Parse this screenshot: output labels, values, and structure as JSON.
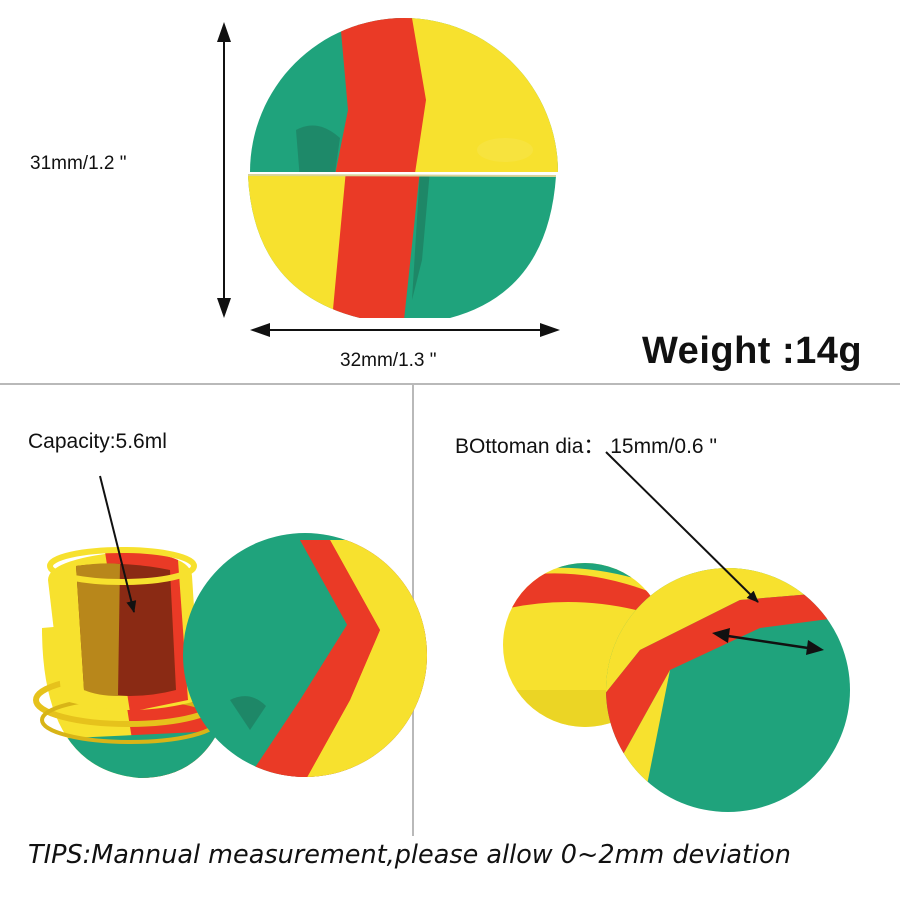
{
  "dimensions": {
    "height_label": "31mm/1.2 \"",
    "width_label": "32mm/1.3 \""
  },
  "weight_label": "Weight :14g",
  "capacity_label": "Capacity:5.6ml",
  "bottom_label": "BOttoman dia： 15mm/0.6 \"",
  "tips": "TIPS:Mannual measurement,please allow 0~2mm deviation",
  "colors": {
    "green": "#1fa37c",
    "red": "#ea3a26",
    "yellow": "#f7e12e",
    "divider": "#b9b9b9"
  }
}
